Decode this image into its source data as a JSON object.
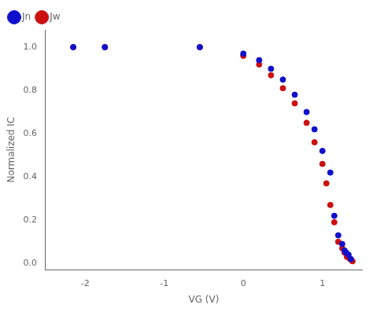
{
  "chart_data": {
    "type": "scatter",
    "xlabel": "VG (V)",
    "ylabel": "Normalized IC",
    "series": [
      {
        "name": "Jn",
        "color": "#1010cc",
        "x": [
          -2.15,
          -1.75,
          -0.55,
          0.0,
          0.2,
          0.35,
          0.5,
          0.65,
          0.8,
          0.9,
          1.0,
          1.1,
          1.15,
          1.2,
          1.25,
          1.28,
          1.3,
          1.33,
          1.36
        ],
        "values": [
          1.0,
          1.0,
          1.0,
          0.97,
          0.94,
          0.9,
          0.85,
          0.78,
          0.7,
          0.62,
          0.52,
          0.42,
          0.22,
          0.13,
          0.09,
          0.06,
          0.05,
          0.04,
          0.02
        ]
      },
      {
        "name": "Jw",
        "color": "#cc1010",
        "x": [
          -2.15,
          -1.75,
          -0.55,
          0.0,
          0.2,
          0.35,
          0.5,
          0.65,
          0.8,
          0.9,
          1.0,
          1.05,
          1.1,
          1.15,
          1.2,
          1.25,
          1.28,
          1.31,
          1.35,
          1.38
        ],
        "values": [
          1.0,
          1.0,
          1.0,
          0.96,
          0.92,
          0.87,
          0.81,
          0.74,
          0.65,
          0.56,
          0.46,
          0.37,
          0.27,
          0.19,
          0.1,
          0.07,
          0.05,
          0.03,
          0.02,
          0.01
        ]
      }
    ],
    "xlim": [
      -2.5,
      1.5
    ],
    "ylim": [
      -0.03,
      1.08
    ],
    "xticks": [
      -2,
      -1,
      0,
      1
    ],
    "yticks": [
      {
        "value": 0.0,
        "label": "0.0"
      },
      0.2,
      0.4,
      0.6,
      0.8,
      {
        "value": 1.0,
        "label": "1.0"
      }
    ],
    "grid": false,
    "legend": "upper left",
    "marker": "circle"
  }
}
